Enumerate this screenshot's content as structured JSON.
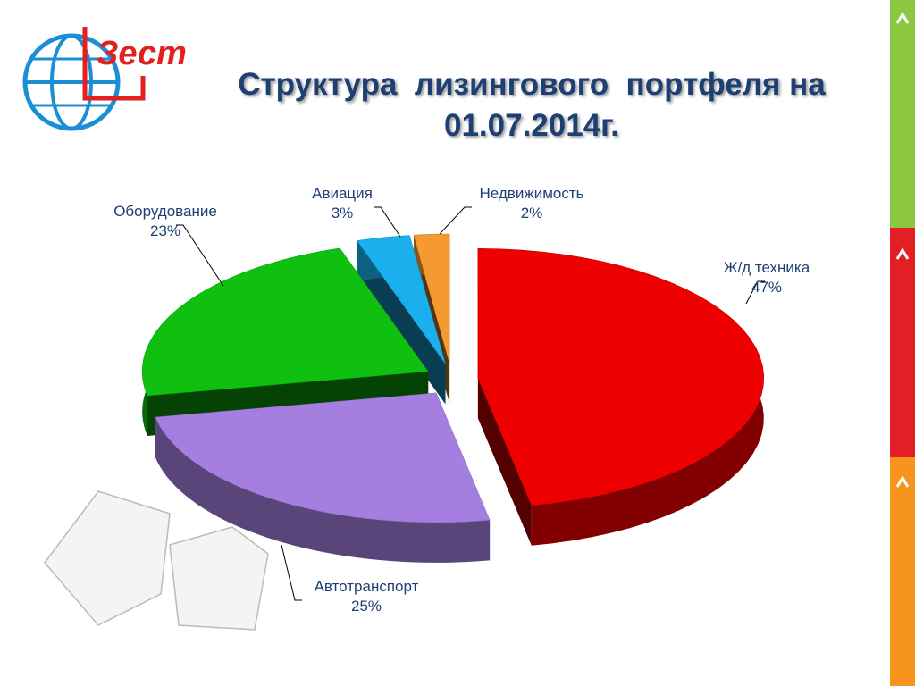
{
  "logo_text": "Зест",
  "chart_data": {
    "type": "pie",
    "title": "Структура  лизингового  портфеля на 01.07.2014г.",
    "categories": [
      "Ж/д техника",
      "Автотранспорт",
      "Оборудование",
      "Авиация",
      "Недвижимость"
    ],
    "values": [
      47,
      25,
      23,
      3,
      2
    ],
    "value_labels": [
      "47%",
      "25%",
      "23%",
      "3%",
      "2%"
    ],
    "colors": [
      "#ee0000",
      "#a57fe0",
      "#10c010",
      "#1ab0ee",
      "#f59a30"
    ]
  }
}
